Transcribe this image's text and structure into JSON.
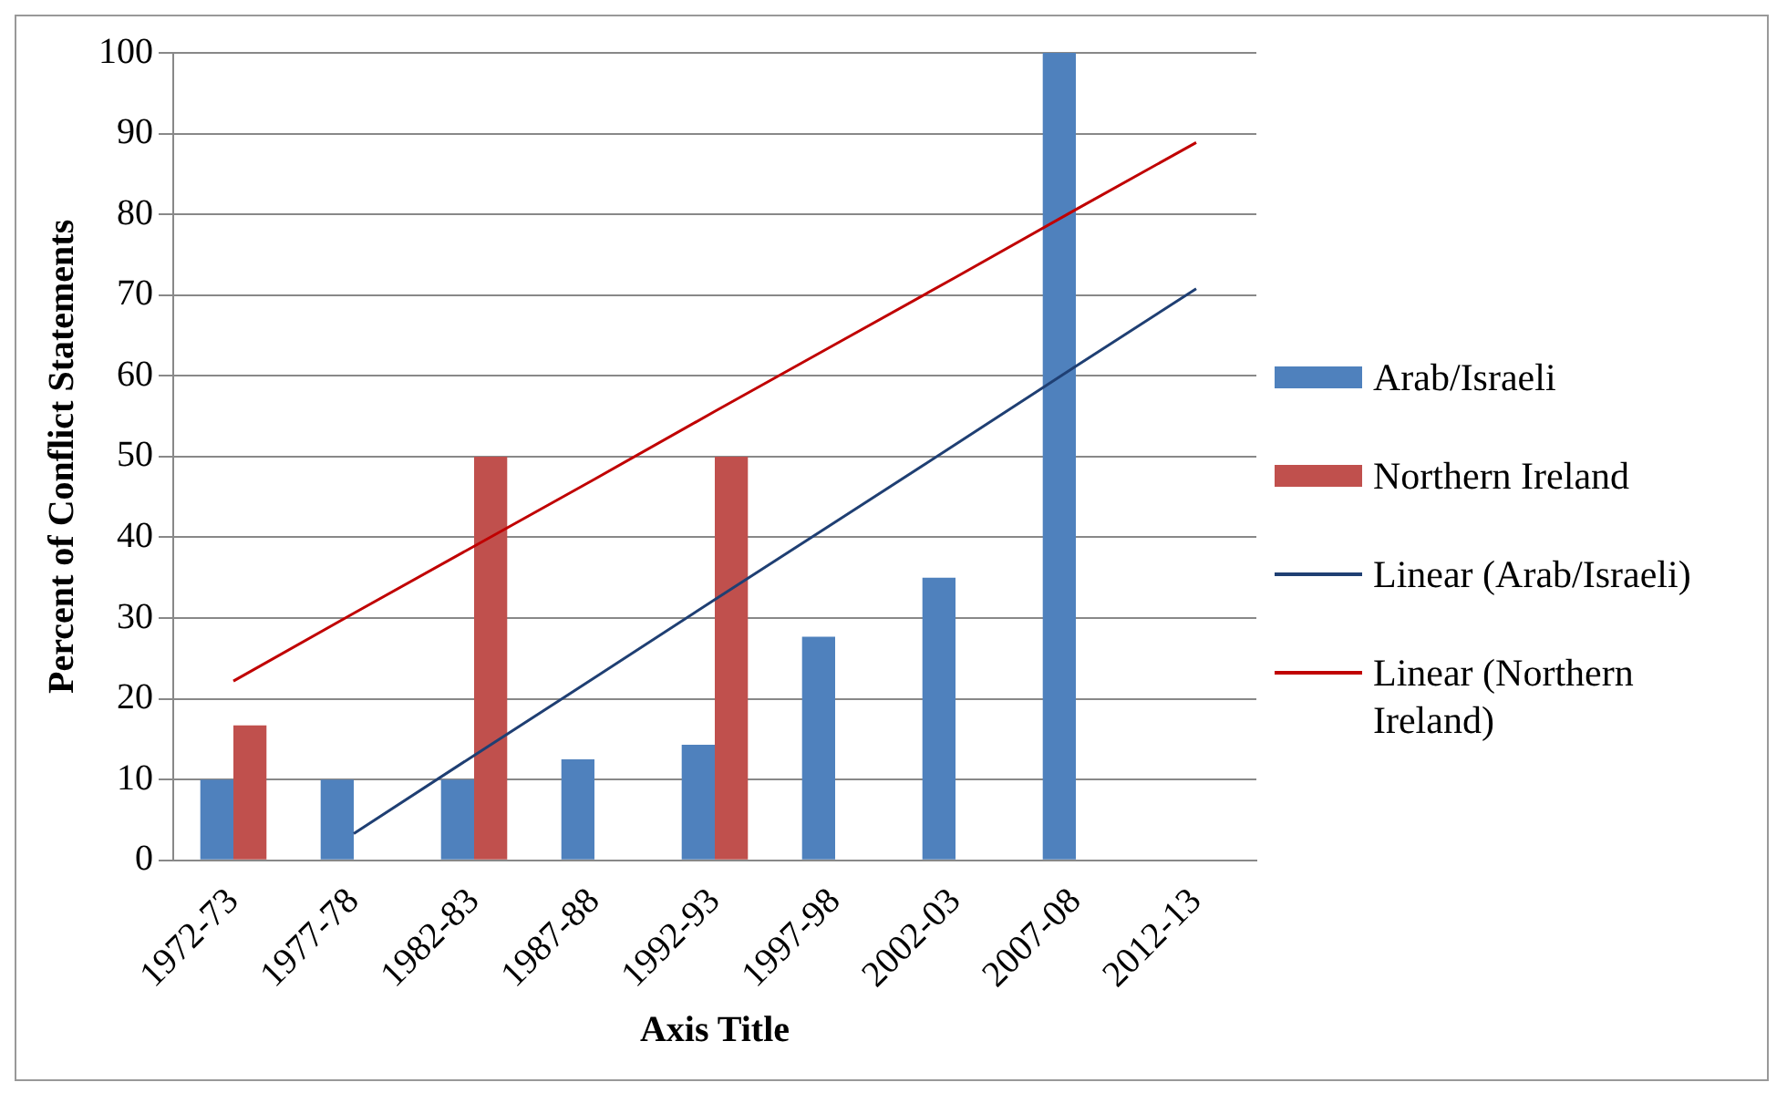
{
  "chart_data": {
    "type": "bar",
    "xlabel": "Axis Title",
    "ylabel": "Percent of Conflict Statements",
    "categories": [
      "1972-73",
      "1977-78",
      "1982-83",
      "1987-88",
      "1992-93",
      "1997-98",
      "2002-03",
      "2007-08",
      "2012-13"
    ],
    "series": [
      {
        "name": "Arab/Israeli",
        "color": "#4f81bd",
        "values": [
          10,
          10,
          10,
          12.5,
          14.3,
          27.7,
          35,
          100,
          null
        ]
      },
      {
        "name": "Northern Ireland",
        "color": "#c0504d",
        "values": [
          16.7,
          null,
          50,
          null,
          50,
          null,
          null,
          null,
          null
        ]
      },
      {
        "name": "Linear (Arab/Israeli)",
        "type": "line",
        "color": "#1f3f73",
        "values": [
          null,
          3.3,
          13.0,
          22.6,
          32.3,
          41.9,
          51.5,
          61.2,
          70.8
        ]
      },
      {
        "name": "Linear (Northern Ireland)",
        "type": "line",
        "color": "#c00000",
        "values": [
          22.2,
          30.6,
          38.9,
          47.2,
          55.6,
          63.9,
          72.2,
          80.6,
          88.9
        ]
      }
    ],
    "ylim": [
      0,
      100
    ],
    "yticks": [
      0,
      10,
      20,
      30,
      40,
      50,
      60,
      70,
      80,
      90,
      100
    ],
    "grid": "y",
    "legend": "right",
    "marker": "none"
  }
}
